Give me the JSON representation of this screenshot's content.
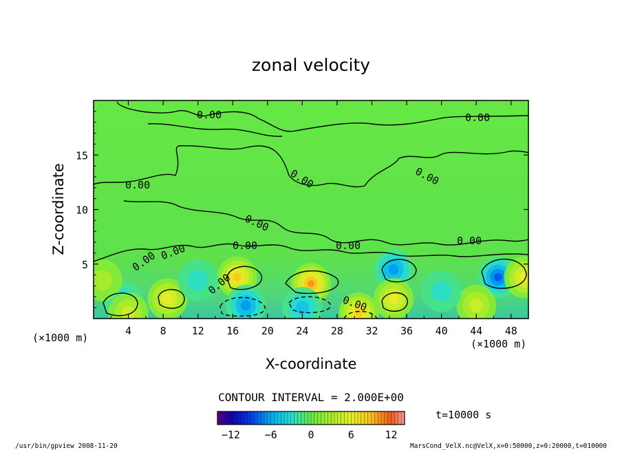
{
  "chart_data": {
    "type": "contour",
    "title": "zonal velocity",
    "xlabel": "X-coordinate",
    "ylabel": "Z-coordinate",
    "x_units": "(×1000 m)",
    "x_units_right": "(×1000 m)",
    "xlim": [
      0,
      50
    ],
    "ylim": [
      0,
      20
    ],
    "x_ticks": [
      "4",
      "8",
      "12",
      "16",
      "20",
      "24",
      "28",
      "32",
      "36",
      "40",
      "44",
      "48"
    ],
    "y_ticks": [
      "5",
      "10",
      "15"
    ],
    "contour_labels": [
      "0.00",
      "0.00",
      "0.00",
      "0.00",
      "0.00",
      "0.00",
      "0.00",
      "0.00",
      "0.00",
      "0.00",
      "0.00",
      "0.00",
      "0.00"
    ],
    "contour_interval": "CONTOUR INTERVAL = 2.000E+00",
    "colorbar_ticks": [
      "−12",
      "−6",
      "0",
      "6",
      "12"
    ],
    "colorbar_range": [
      -14,
      14
    ],
    "time_label": "t=10000 s",
    "cells": [
      {
        "x": 3.5,
        "z": 1.5,
        "v": -6
      },
      {
        "x": 4.0,
        "z": 0.5,
        "v": 6
      },
      {
        "x": 8.5,
        "z": 1.8,
        "v": 8
      },
      {
        "x": 16.5,
        "z": 3.8,
        "v": 10
      },
      {
        "x": 17.5,
        "z": 1.2,
        "v": -8
      },
      {
        "x": 25.0,
        "z": 3.2,
        "v": 12
      },
      {
        "x": 24.0,
        "z": 1.0,
        "v": -6
      },
      {
        "x": 30.5,
        "z": 0.5,
        "v": 10
      },
      {
        "x": 34.5,
        "z": 4.5,
        "v": -8
      },
      {
        "x": 34.5,
        "z": 1.8,
        "v": 8
      },
      {
        "x": 46.5,
        "z": 3.8,
        "v": -10
      },
      {
        "x": 44.0,
        "z": 1.2,
        "v": 6
      },
      {
        "x": 49.5,
        "z": 3.8,
        "v": 8
      },
      {
        "x": 12.0,
        "z": 3.5,
        "v": -4
      },
      {
        "x": 40.0,
        "z": 2.5,
        "v": -4
      },
      {
        "x": 1.0,
        "z": 3.5,
        "v": 4
      }
    ]
  },
  "footer_left": "/usr/bin/gpview  2008-11-20",
  "footer_right": "MarsCond_VelX.nc@VelX,x=0:50000,z=0:20000,t=010000"
}
